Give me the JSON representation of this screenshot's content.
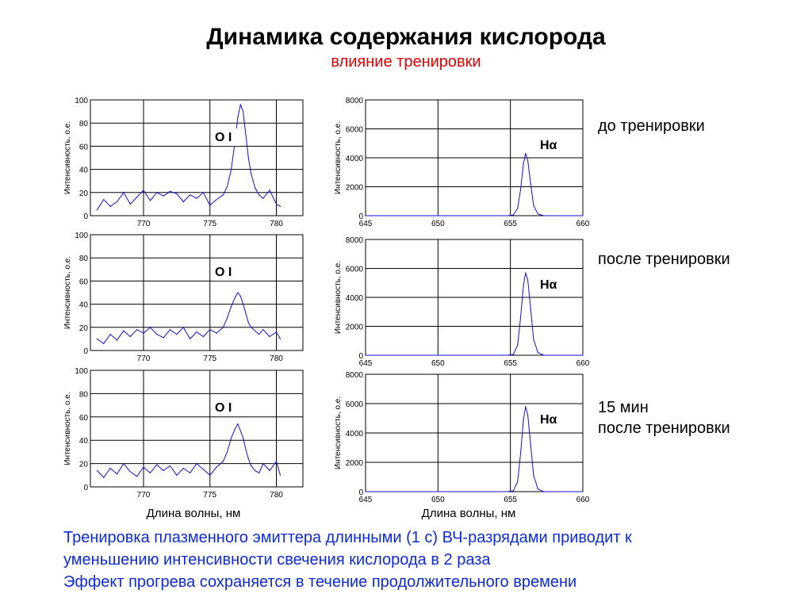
{
  "slide": {
    "title": "Динамика содержания кислорода",
    "subtitle": "влияние тренировки",
    "conditions": [
      {
        "line1": "до тренировки",
        "line2": ""
      },
      {
        "line1": "после тренировки",
        "line2": ""
      },
      {
        "line1": "15 мин",
        "line2": "после тренировки"
      }
    ],
    "xlabel_left": "Длина волны, нм",
    "xlabel_right": "Длина волны, нм",
    "footer": [
      "Тренировка плазменного эмиттера длинными (1 с) ВЧ-разрядами приводит к",
      "уменьшению интенсивности свечения кислорода в 2 раза",
      "Эффект прогрева сохраняется в течение продолжительного времени"
    ],
    "colors": {
      "subtitle": "#e00000",
      "footer": "#0b2bd8",
      "line": "#1010d0"
    }
  },
  "chart_data": [
    {
      "type": "line",
      "row": 0,
      "ylabel": "Интенсивность, о.е.",
      "annotation": "O I",
      "ylim": [
        0,
        100
      ],
      "yticks": [
        "0",
        "20",
        "40",
        "60",
        "80",
        "100"
      ],
      "xlim": [
        766,
        782
      ],
      "xticks": [
        "770",
        "775",
        "780"
      ],
      "grid": true,
      "series": [
        {
          "x": [
            766.5,
            767.0,
            767.5,
            768.0,
            768.5,
            769.0,
            769.5,
            770.0,
            770.5,
            771.0,
            771.5,
            772.0,
            772.5,
            773.0,
            773.5,
            774.0,
            774.5,
            775.0,
            775.5,
            776.0,
            776.3,
            776.6,
            776.9,
            777.1,
            777.3,
            777.5,
            777.7,
            777.9,
            778.1,
            778.4,
            778.7,
            779.0,
            779.5,
            780.0,
            780.3
          ],
          "y": [
            5,
            14,
            8,
            12,
            20,
            10,
            16,
            22,
            13,
            20,
            17,
            21,
            19,
            12,
            18,
            15,
            20,
            9,
            14,
            18,
            25,
            40,
            65,
            85,
            96,
            90,
            70,
            50,
            36,
            24,
            18,
            15,
            22,
            10,
            8
          ]
        }
      ]
    },
    {
      "type": "line",
      "row": 0,
      "ylabel": "Интенсивность, о.е.",
      "annotation": "Hα",
      "ylim": [
        0,
        8000
      ],
      "yticks": [
        "0",
        "2000",
        "4000",
        "6000",
        "8000"
      ],
      "xlim": [
        645,
        660
      ],
      "xticks": [
        "645",
        "650",
        "655",
        "660"
      ],
      "grid": true,
      "series": [
        {
          "x": [
            645,
            654.8,
            655.2,
            655.5,
            655.7,
            655.9,
            656.05,
            656.2,
            656.4,
            656.6,
            656.9,
            657.3,
            660
          ],
          "y": [
            0,
            0,
            50,
            500,
            1800,
            3600,
            4300,
            3800,
            2200,
            700,
            120,
            0,
            0
          ]
        }
      ]
    },
    {
      "type": "line",
      "row": 1,
      "ylabel": "Интенсивность, о.е.",
      "annotation": "O I",
      "ylim": [
        0,
        100
      ],
      "yticks": [
        "0",
        "20",
        "40",
        "60",
        "80",
        "100"
      ],
      "xlim": [
        766,
        782
      ],
      "xticks": [
        "770",
        "775",
        "780"
      ],
      "grid": true,
      "series": [
        {
          "x": [
            766.5,
            767.0,
            767.5,
            768.0,
            768.5,
            769.0,
            769.5,
            770.0,
            770.5,
            771.0,
            771.5,
            772.0,
            772.5,
            773.0,
            773.5,
            774.0,
            774.5,
            775.0,
            775.5,
            776.0,
            776.3,
            776.6,
            776.9,
            777.1,
            777.3,
            777.5,
            777.7,
            777.9,
            778.1,
            778.4,
            778.7,
            779.0,
            779.5,
            780.0,
            780.3
          ],
          "y": [
            10,
            6,
            14,
            9,
            17,
            12,
            18,
            15,
            20,
            14,
            11,
            18,
            14,
            20,
            10,
            16,
            12,
            18,
            15,
            20,
            28,
            38,
            46,
            50,
            47,
            40,
            32,
            24,
            20,
            17,
            14,
            18,
            12,
            16,
            10
          ]
        }
      ]
    },
    {
      "type": "line",
      "row": 1,
      "ylabel": "Интенсивность, о.е.",
      "annotation": "Hα",
      "ylim": [
        0,
        8000
      ],
      "yticks": [
        "0",
        "2000",
        "4000",
        "6000",
        "8000"
      ],
      "xlim": [
        645,
        660
      ],
      "xticks": [
        "645",
        "650",
        "655",
        "660"
      ],
      "grid": true,
      "series": [
        {
          "x": [
            645,
            654.8,
            655.2,
            655.5,
            655.7,
            655.9,
            656.05,
            656.2,
            656.4,
            656.6,
            656.9,
            657.3,
            660
          ],
          "y": [
            0,
            0,
            50,
            700,
            2600,
            4800,
            5700,
            5200,
            3200,
            1100,
            180,
            0,
            0
          ]
        }
      ]
    },
    {
      "type": "line",
      "row": 2,
      "ylabel": "Интенсивность, о.е.",
      "annotation": "O I",
      "ylim": [
        0,
        100
      ],
      "yticks": [
        "0",
        "20",
        "40",
        "60",
        "80",
        "100"
      ],
      "xlim": [
        766,
        782
      ],
      "xticks": [
        "770",
        "775",
        "780"
      ],
      "grid": true,
      "series": [
        {
          "x": [
            766.5,
            767.0,
            767.5,
            768.0,
            768.5,
            769.0,
            769.5,
            770.0,
            770.5,
            771.0,
            771.5,
            772.0,
            772.5,
            773.0,
            773.5,
            774.0,
            774.5,
            775.0,
            775.5,
            776.0,
            776.3,
            776.6,
            776.9,
            777.1,
            777.3,
            777.5,
            777.7,
            777.9,
            778.1,
            778.4,
            778.7,
            779.0,
            779.5,
            780.0,
            780.3
          ],
          "y": [
            14,
            8,
            16,
            11,
            20,
            13,
            9,
            17,
            12,
            19,
            14,
            18,
            10,
            16,
            12,
            20,
            15,
            10,
            17,
            22,
            30,
            42,
            50,
            54,
            48,
            42,
            32,
            24,
            18,
            14,
            12,
            20,
            14,
            22,
            10
          ]
        }
      ]
    },
    {
      "type": "line",
      "row": 2,
      "ylabel": "Интенсивность, о.е.",
      "annotation": "Hα",
      "ylim": [
        0,
        8000
      ],
      "yticks": [
        "0",
        "2000",
        "4000",
        "6000",
        "8000"
      ],
      "xlim": [
        645,
        660
      ],
      "xticks": [
        "645",
        "650",
        "655",
        "660"
      ],
      "grid": true,
      "series": [
        {
          "x": [
            645,
            654.8,
            655.2,
            655.5,
            655.7,
            655.9,
            656.05,
            656.2,
            656.4,
            656.6,
            656.9,
            657.3,
            660
          ],
          "y": [
            0,
            0,
            50,
            700,
            2600,
            4900,
            5800,
            5200,
            3200,
            1100,
            180,
            0,
            0
          ]
        }
      ]
    }
  ]
}
